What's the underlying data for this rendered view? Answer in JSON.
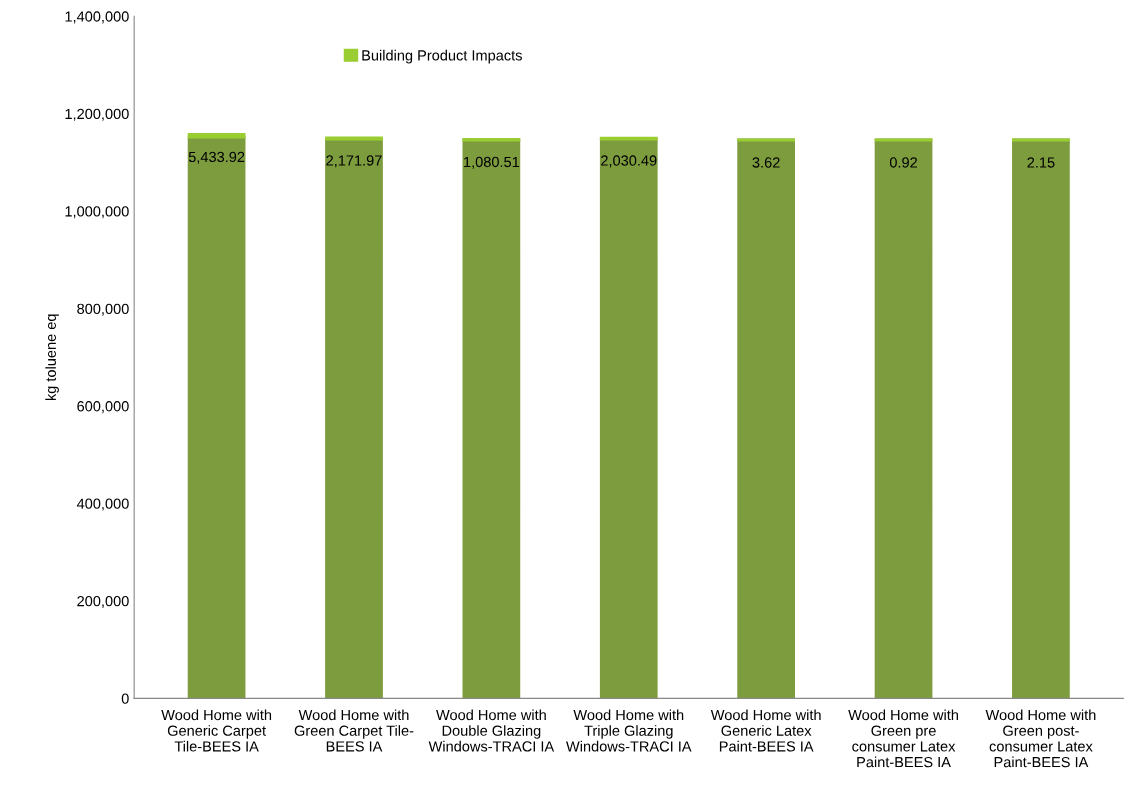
{
  "chart_data": {
    "type": "bar",
    "stacked": true,
    "ylabel": "kg toluene eq",
    "categories": [
      "Wood Home with\nGeneric Carpet\nTile-BEES IA",
      "Wood Home with\nGreen Carpet Tile-\nBEES IA",
      "Wood Home with\nDouble Glazing\nWindows-TRACI IA",
      "Wood Home with\nTriple Glazing\nWindows-TRACI IA",
      "Wood Home with\nGeneric Latex\nPaint-BEES IA",
      "Wood Home with\nGreen pre\nconsumer Latex\nPaint-BEES IA",
      "Wood Home with\nGreen post-\nconsumer Latex\nPaint-BEES IA"
    ],
    "series": [
      {
        "color": "#7d9c3e",
        "values": [
          1152000,
          1148000,
          1146000,
          1148000,
          1146000,
          1146000,
          1146000
        ]
      },
      {
        "name": "Building Product Impacts",
        "color": "#9acd32",
        "values": [
          5433.92,
          2171.97,
          1080.51,
          2030.49,
          3.62,
          0.92,
          2.15
        ],
        "value_labels": [
          "5,433.92",
          "2,171.97",
          "1,080.51",
          "2,030.49",
          "3.62",
          "0.92",
          "2.15"
        ]
      }
    ],
    "ylim": [
      0,
      1400000
    ],
    "yticks": [
      {
        "value": 0,
        "label": "0"
      },
      {
        "value": 200000,
        "label": "200,000"
      },
      {
        "value": 400000,
        "label": "400,000"
      },
      {
        "value": 600000,
        "label": "600,000"
      },
      {
        "value": 800000,
        "label": "800,000"
      },
      {
        "value": 1000000,
        "label": "1,000,000"
      },
      {
        "value": 1200000,
        "label": "1,200,000"
      },
      {
        "value": 1400000,
        "label": "1,400,000"
      }
    ],
    "grid": false,
    "legend": "top left"
  }
}
